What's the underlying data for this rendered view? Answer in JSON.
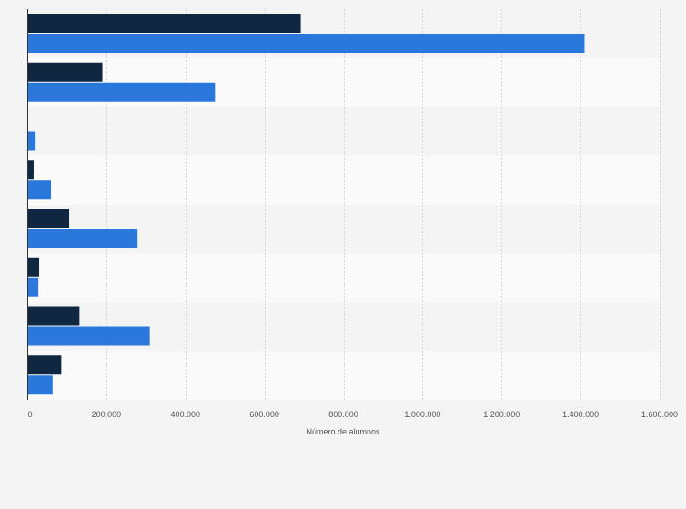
{
  "chart_data": {
    "type": "bar",
    "orientation": "horizontal",
    "xlabel": "Número de alumnos",
    "xlim": [
      0,
      1600000
    ],
    "x_ticks": [
      "0",
      "200.000",
      "400.000",
      "600.000",
      "800.000",
      "1.000.000",
      "1.200.000",
      "1.400.000",
      "1.600.000"
    ],
    "x_tick_values": [
      0,
      200000,
      400000,
      600000,
      800000,
      1000000,
      1200000,
      1400000,
      1600000
    ],
    "grid": true,
    "categories": [
      "",
      "",
      "",
      "",
      "",
      "",
      "",
      ""
    ],
    "series": [
      {
        "color": "#0f2740",
        "values": [
          692000,
          190000,
          0,
          16000,
          106000,
          30000,
          132000,
          86000
        ]
      },
      {
        "color": "#2a78dc",
        "values": [
          1410000,
          475000,
          21000,
          60000,
          279000,
          28000,
          310000,
          64000
        ]
      }
    ],
    "band_colors": [
      "#f4f4f4",
      "#fafafa"
    ]
  }
}
